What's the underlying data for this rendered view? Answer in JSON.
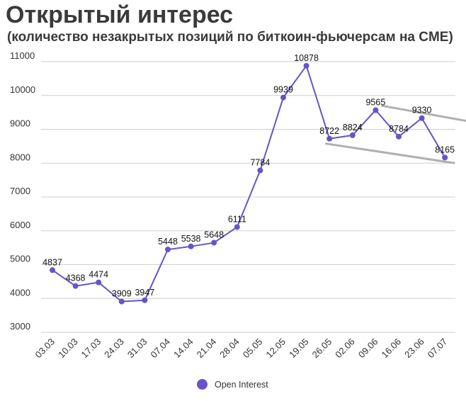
{
  "chart_data": {
    "type": "line",
    "title": "Открытый интерес",
    "subtitle": "(количество незакрытых позиций по биткоин-фьючерсам на CME)",
    "categories": [
      "03.03",
      "10.03",
      "17.03",
      "24.03",
      "31.03",
      "07.04",
      "14.04",
      "21.04",
      "28.04",
      "05.05",
      "12.05",
      "19.05",
      "26.05",
      "02.06",
      "09.06",
      "16.06",
      "23.06",
      "07.07"
    ],
    "series": [
      {
        "name": "Open Interest",
        "values": [
          4837,
          4368,
          4474,
          3909,
          3947,
          5448,
          5538,
          5648,
          6111,
          7784,
          9939,
          10878,
          8722,
          8824,
          9565,
          8784,
          9330,
          8165
        ]
      }
    ],
    "yticks": [
      3000,
      4000,
      5000,
      6000,
      7000,
      8000,
      9000,
      10000,
      11000
    ],
    "ylim": [
      3000,
      11000
    ],
    "grid": true,
    "legend_position": "bottom-center",
    "colors": {
      "series": "#6a52c7",
      "grid": "#cfcfcf",
      "channel": "#b0b0b0"
    },
    "annotations": [
      {
        "type": "trend-channel-upper",
        "from": {
          "x": "09.06",
          "y": 9700
        },
        "to": {
          "x": "07.07 and beyond",
          "y": 9250
        }
      },
      {
        "type": "trend-channel-lower",
        "from": {
          "x": "26.05",
          "y": 8580
        },
        "to": {
          "x": "07.07",
          "y": 8000
        }
      }
    ]
  }
}
